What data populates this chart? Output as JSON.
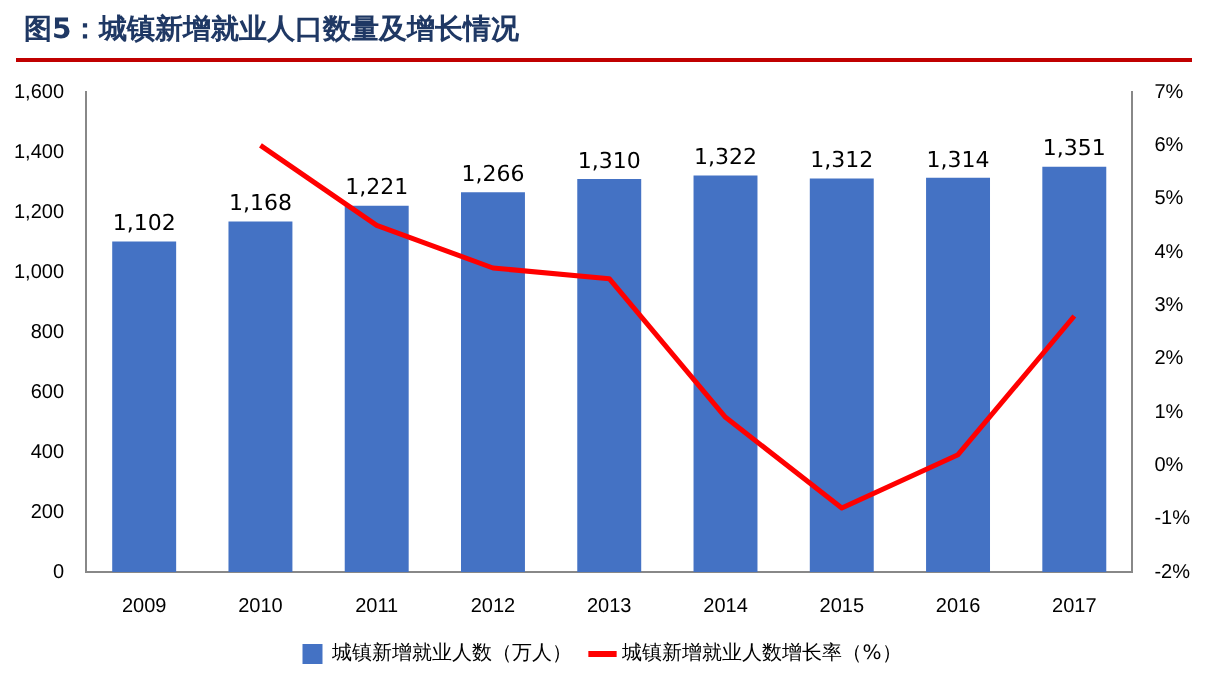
{
  "chart_data": {
    "type": "bar",
    "title": "图5：城镇新增就业人口数量及增长情况",
    "categories": [
      "2009",
      "2010",
      "2011",
      "2012",
      "2013",
      "2014",
      "2015",
      "2016",
      "2017"
    ],
    "series": [
      {
        "name": "城镇新增就业人数（万人）",
        "color": "#4472c4",
        "values": [
          1102,
          1168,
          1221,
          1266,
          1310,
          1322,
          1312,
          1314,
          1351
        ],
        "value_labels": [
          "1,102",
          "1,168",
          "1,221",
          "1,266",
          "1,310",
          "1,322",
          "1,312",
          "1,314",
          "1,351"
        ]
      },
      {
        "name": "城镇新增就业人数增长率（%）",
        "type": "line",
        "axis": "y2",
        "color": "#ff0000",
        "marker": "none",
        "values": [
          null,
          6.0,
          4.5,
          3.7,
          3.5,
          0.9,
          -0.8,
          0.2,
          2.8
        ]
      }
    ],
    "ylim": [
      0,
      1600
    ],
    "yticks": [
      {
        "value": 0,
        "label": "0"
      },
      {
        "value": 200,
        "label": "200"
      },
      {
        "value": 400,
        "label": "400"
      },
      {
        "value": 600,
        "label": "600"
      },
      {
        "value": 800,
        "label": "800"
      },
      {
        "value": 1000,
        "label": "1,000"
      },
      {
        "value": 1200,
        "label": "1,200"
      },
      {
        "value": 1400,
        "label": "1,400"
      },
      {
        "value": 1600,
        "label": "1,600"
      }
    ],
    "y2lim": [
      -2,
      7
    ],
    "y2ticks": [
      {
        "value": -2,
        "label": "-2%"
      },
      {
        "value": -1,
        "label": "-1%"
      },
      {
        "value": 0,
        "label": "0%"
      },
      {
        "value": 1,
        "label": "1%"
      },
      {
        "value": 2,
        "label": "2%"
      },
      {
        "value": 3,
        "label": "3%"
      },
      {
        "value": 4,
        "label": "4%"
      },
      {
        "value": 5,
        "label": "5%"
      },
      {
        "value": 6,
        "label": "6%"
      },
      {
        "value": 7,
        "label": "7%"
      }
    ],
    "grid": false,
    "legend": "bottom"
  }
}
